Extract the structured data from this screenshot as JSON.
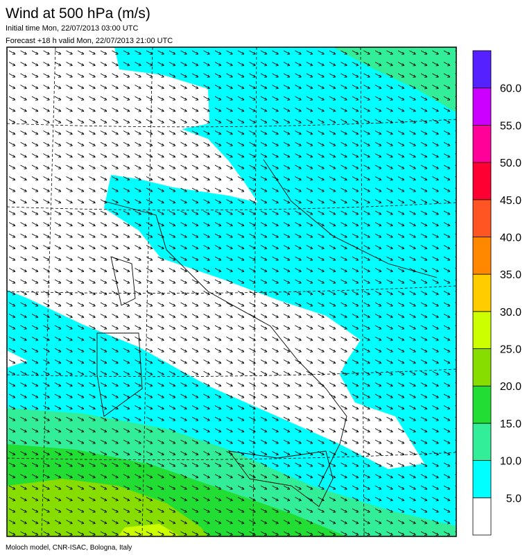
{
  "header": {
    "title": "Wind at 500 hPa (m/s)",
    "initial_time": "Initial time  Mon, 22/07/2013 03:00 UTC",
    "forecast": "Forecast +18 h valid  Mon, 22/07/2013 21:00 UTC"
  },
  "legend": {
    "colors": [
      "#ffffff",
      "#00ffff",
      "#33ee99",
      "#22dd33",
      "#88dd00",
      "#ccff00",
      "#ffcc00",
      "#ff8800",
      "#ff5522",
      "#ff0033",
      "#ff0099",
      "#cc00ff",
      "#5522ff"
    ],
    "labels": [
      "5.0",
      "10.0",
      "15.0",
      "20.0",
      "25.0",
      "30.0",
      "35.0",
      "40.0",
      "45.0",
      "50.0",
      "55.0",
      "60.0"
    ]
  },
  "footer": "Moloch model, CNR-ISAC, Bologna, Italy"
}
